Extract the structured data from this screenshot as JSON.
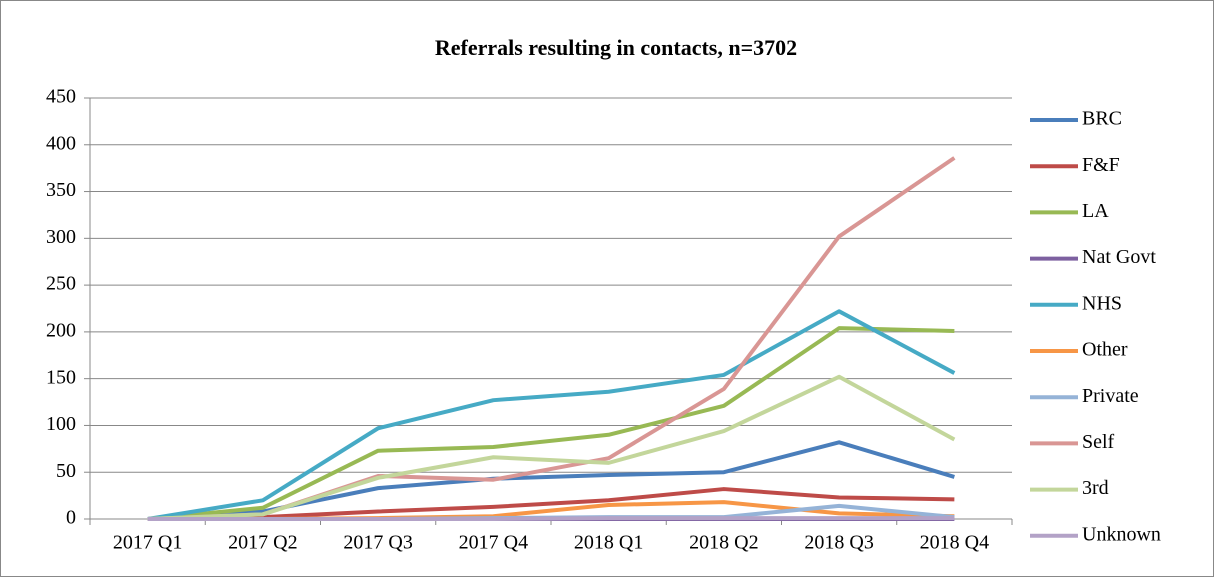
{
  "chart_data": {
    "type": "line",
    "title": "Referrals resulting in contacts, n=3702",
    "categories": [
      "2017 Q1",
      "2017 Q2",
      "2017 Q3",
      "2017 Q4",
      "2018 Q1",
      "2018 Q2",
      "2018 Q3",
      "2018 Q4"
    ],
    "series": [
      {
        "name": "BRC",
        "color": "#4a7ebb",
        "values": [
          0,
          8,
          33,
          43,
          47,
          50,
          82,
          45
        ]
      },
      {
        "name": "F&F",
        "color": "#be4b48",
        "values": [
          0,
          2,
          8,
          13,
          20,
          32,
          23,
          21
        ]
      },
      {
        "name": "LA",
        "color": "#98b954",
        "values": [
          0,
          12,
          73,
          77,
          90,
          121,
          204,
          201
        ]
      },
      {
        "name": "Nat Govt",
        "color": "#7d60a0",
        "values": [
          0,
          0,
          0,
          0,
          0,
          0,
          0,
          0
        ]
      },
      {
        "name": "NHS",
        "color": "#46aac5",
        "values": [
          0,
          20,
          97,
          127,
          136,
          154,
          222,
          156
        ]
      },
      {
        "name": "Other",
        "color": "#f79646",
        "values": [
          0,
          0,
          1,
          3,
          15,
          18,
          6,
          3
        ]
      },
      {
        "name": "Private",
        "color": "#95b3d7",
        "values": [
          0,
          0,
          0,
          1,
          2,
          2,
          14,
          2
        ]
      },
      {
        "name": "Self",
        "color": "#d99694",
        "values": [
          0,
          5,
          46,
          42,
          65,
          139,
          302,
          386
        ]
      },
      {
        "name": "3rd",
        "color": "#c3d69b",
        "values": [
          0,
          5,
          44,
          66,
          60,
          94,
          152,
          85
        ]
      },
      {
        "name": "Unknown",
        "color": "#b3a2c7",
        "values": [
          0,
          0,
          0,
          0,
          1,
          1,
          1,
          1
        ]
      }
    ],
    "ylim": [
      0,
      450
    ],
    "yticks": [
      0,
      50,
      100,
      150,
      200,
      250,
      300,
      350,
      400,
      450
    ],
    "grid": true,
    "legend": "right"
  }
}
